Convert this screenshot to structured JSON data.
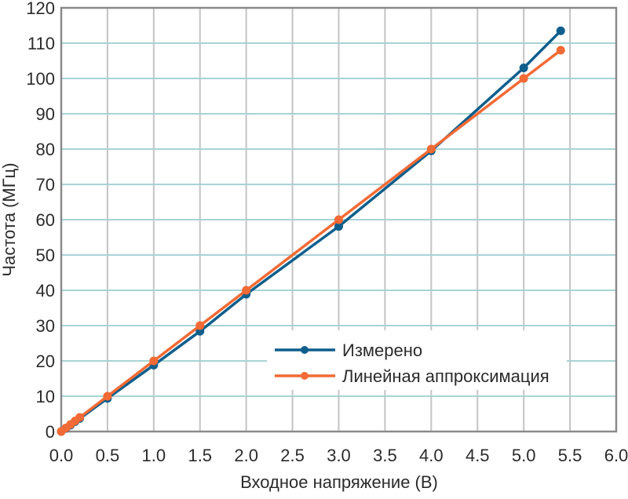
{
  "chart_data": {
    "type": "line",
    "title": "",
    "xlabel": "Входное напряжение (В)",
    "ylabel": "Частота (МГц)",
    "xlim": [
      0,
      6.0
    ],
    "ylim": [
      0,
      120
    ],
    "xticks": [
      "0.0",
      "0.5",
      "1.0",
      "1.5",
      "2.0",
      "2.5",
      "3.0",
      "3.5",
      "4.0",
      "4.5",
      "5.0",
      "5.5",
      "6.0"
    ],
    "yticks": [
      "0",
      "10",
      "20",
      "30",
      "40",
      "50",
      "60",
      "70",
      "80",
      "90",
      "100",
      "110",
      "120"
    ],
    "grid": true,
    "legend_position": "lower right (inside plot)",
    "series": [
      {
        "name": "Измерено",
        "color": "#0F5E8C",
        "x": [
          0.0,
          0.05,
          0.1,
          0.15,
          0.2,
          0.5,
          1.0,
          1.5,
          2.0,
          3.0,
          4.0,
          5.0,
          5.4
        ],
        "values": [
          0.0,
          0.9,
          1.8,
          2.8,
          3.7,
          9.4,
          18.8,
          28.4,
          38.9,
          58.1,
          79.5,
          103.0,
          113.5
        ]
      },
      {
        "name": "Линейная аппроксимация",
        "color": "#F26A35",
        "x": [
          0.0,
          0.05,
          0.1,
          0.15,
          0.2,
          0.5,
          1.0,
          1.5,
          2.0,
          3.0,
          4.0,
          5.0,
          5.4
        ],
        "values": [
          0.0,
          1.0,
          2.0,
          3.0,
          4.0,
          10.0,
          20.0,
          30.0,
          40.0,
          60.0,
          80.0,
          100.0,
          108.0
        ]
      }
    ]
  },
  "colors": {
    "hgrid": "#A9D3D5",
    "vgrid": "#C4C4C4",
    "axis": "#8A8A8A",
    "text": "#2b2b2b"
  }
}
